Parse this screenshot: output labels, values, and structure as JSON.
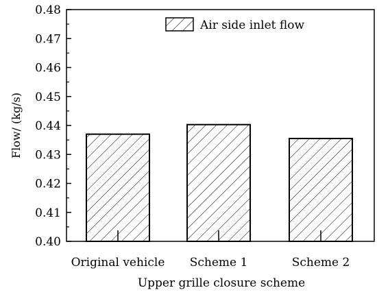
{
  "chart_data": {
    "type": "bar",
    "title": "",
    "xlabel": "Upper grille closure scheme",
    "ylabel": "Flow/ (kg/s)",
    "categories": [
      "Original vehicle",
      "Scheme 1",
      "Scheme 2"
    ],
    "series": [
      {
        "name": "Air side inlet flow",
        "values": [
          0.437,
          0.4403,
          0.4355
        ]
      }
    ],
    "ylim": [
      0.4,
      0.48
    ],
    "yticks": [
      "0.40",
      "0.41",
      "0.42",
      "0.43",
      "0.44",
      "0.45",
      "0.46",
      "0.47",
      "0.48"
    ],
    "grid": false,
    "legend_position": "top-right",
    "bar_pattern": "diagonal-hatch",
    "bar_fill": "#ffffff",
    "bar_stroke": "#000000"
  }
}
